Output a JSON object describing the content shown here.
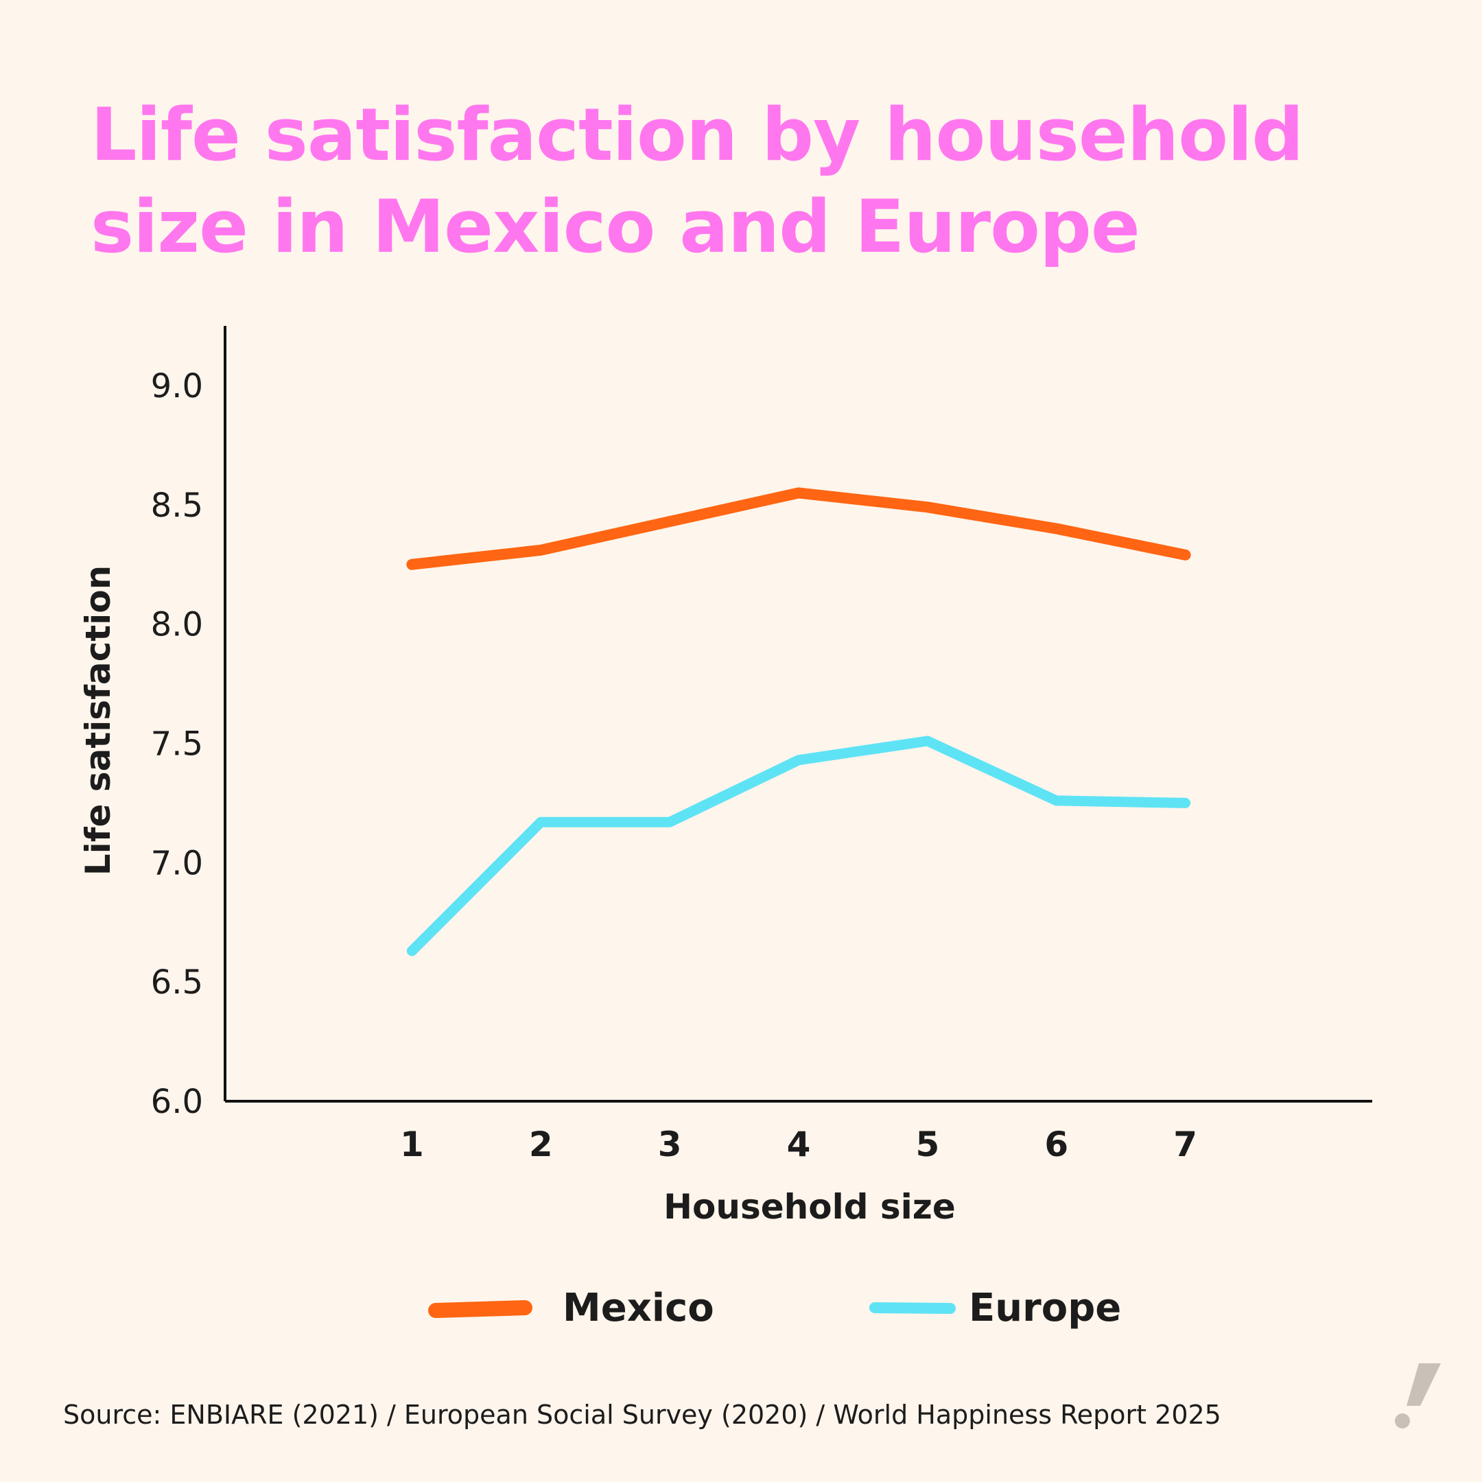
{
  "title": "Life satisfaction by household size in Mexico and Europe",
  "source": "Source: ENBIARE (2021) / European Social Survey (2020) / World Happiness Report 2025",
  "colors": {
    "background": "#FEF5EC",
    "title": "#FF77EE",
    "mexico": "#FF6512",
    "europe": "#5EE3F5",
    "logo": "#C8C1BA"
  },
  "logo_icon": "exclamation-logo-icon",
  "chart_data": {
    "type": "line",
    "title": "Life satisfaction by household size in Mexico and Europe",
    "xlabel": "Household size",
    "ylabel": "Life satisfaction",
    "x": [
      1,
      2,
      3,
      4,
      5,
      6,
      7
    ],
    "xticks": [
      "1",
      "2",
      "3",
      "4",
      "5",
      "6",
      "7"
    ],
    "xlim": [
      -0.45,
      8.45
    ],
    "yticks": [
      "6.0",
      "6.5",
      "7.0",
      "7.5",
      "8.0",
      "8.5",
      "9.0"
    ],
    "ylim": [
      6.0,
      9.25
    ],
    "grid": false,
    "legend_position": "bottom",
    "series": [
      {
        "name": "Mexico",
        "color": "#FF6512",
        "values": [
          8.25,
          8.31,
          8.43,
          8.55,
          8.49,
          8.4,
          8.29
        ]
      },
      {
        "name": "Europe",
        "color": "#5EE3F5",
        "values": [
          6.63,
          7.17,
          7.17,
          7.43,
          7.51,
          7.26,
          7.25
        ]
      }
    ]
  }
}
